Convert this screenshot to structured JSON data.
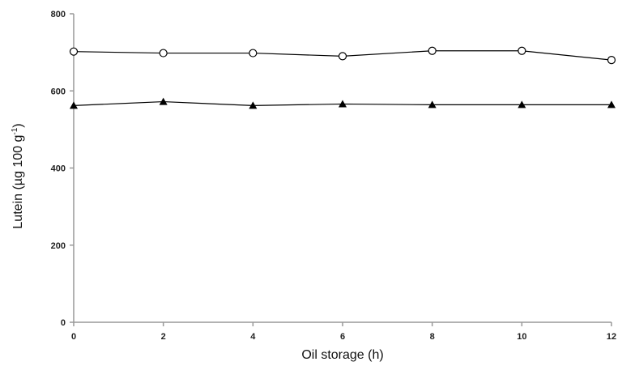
{
  "chart_data": {
    "type": "line",
    "xlabel": "Oil storage (h)",
    "ylabel": {
      "prefix": "Lutein (µg 100 g",
      "superscript": "-1",
      "suffix": ")"
    },
    "x": [
      0,
      2,
      4,
      6,
      8,
      10,
      12
    ],
    "xlim": [
      0,
      12
    ],
    "ylim": [
      0,
      800
    ],
    "xticks": [
      "0",
      "2",
      "4",
      "6",
      "8",
      "10",
      "12"
    ],
    "yticks": [
      "0",
      "200",
      "400",
      "600",
      "800"
    ],
    "grid": false,
    "legend": "none",
    "series": [
      {
        "marker": "open-circle",
        "color": "#000000",
        "values": [
          702,
          698,
          698,
          690,
          704,
          704,
          680
        ]
      },
      {
        "marker": "filled-triangle",
        "color": "#000000",
        "values": [
          562,
          572,
          562,
          566,
          564,
          564,
          564
        ]
      }
    ]
  }
}
